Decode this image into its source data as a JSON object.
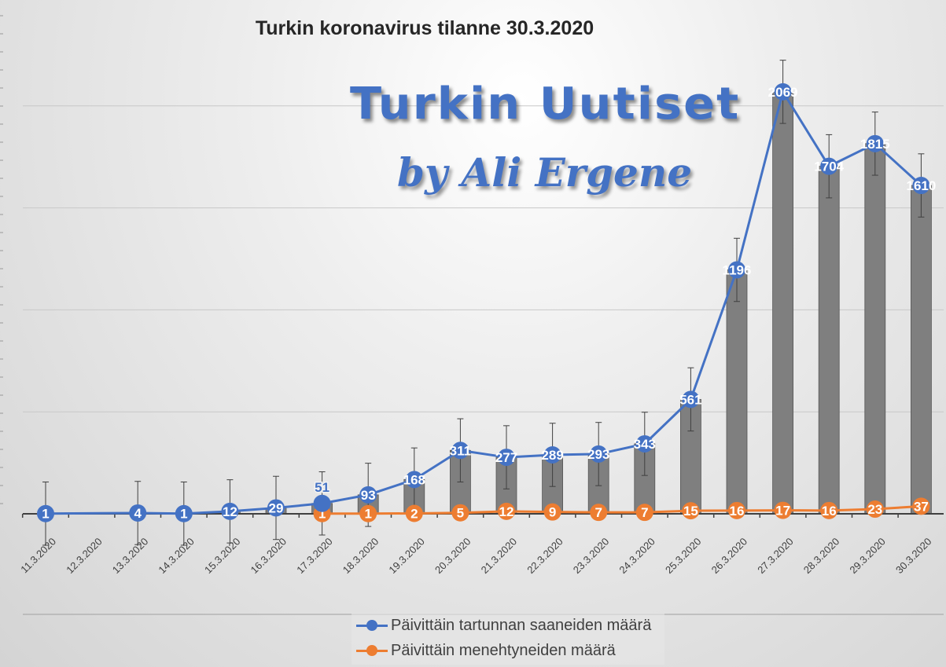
{
  "title": "Turkin koronavirus tilanne 30.3.2020",
  "logo": {
    "line1": "Turkin Uutiset",
    "line2": "by Ali Ergene"
  },
  "chart_data": {
    "type": "bar+line",
    "title": "Turkin koronavirus tilanne 30.3.2020",
    "categories": [
      "11.3.2020",
      "12.3.2020",
      "13.3.2020",
      "14.3.2020",
      "15.3.2020",
      "16.3.2020",
      "17.3.2020",
      "18.3.2020",
      "19.3.2020",
      "20.3.2020",
      "21.3.2020",
      "22.3.2020",
      "23.3.2020",
      "24.3.2020",
      "25.3.2020",
      "26.3.2020",
      "27.3.2020",
      "28.3.2020",
      "29.3.2020",
      "30.3.2020"
    ],
    "series": [
      {
        "name": "Päivittäin tartunnan saaneiden määrä",
        "type": "line+bar",
        "color": "#4472c4",
        "bar_color": "#7f7f7f",
        "values": [
          1,
          null,
          4,
          1,
          12,
          29,
          51,
          93,
          168,
          311,
          277,
          289,
          293,
          343,
          561,
          1196,
          2069,
          1704,
          1815,
          1610
        ]
      },
      {
        "name": "Päivittäin menehtyneiden määrä",
        "type": "line",
        "color": "#ed7d31",
        "values": [
          null,
          null,
          null,
          null,
          null,
          null,
          1,
          1,
          2,
          5,
          12,
          9,
          7,
          7,
          15,
          16,
          17,
          16,
          23,
          37
        ]
      }
    ],
    "error_bar": 155,
    "ylim": [
      0,
      2500
    ],
    "gridlines": [
      500,
      1000,
      1500,
      2000
    ],
    "grid": true,
    "legend": "bottom"
  }
}
